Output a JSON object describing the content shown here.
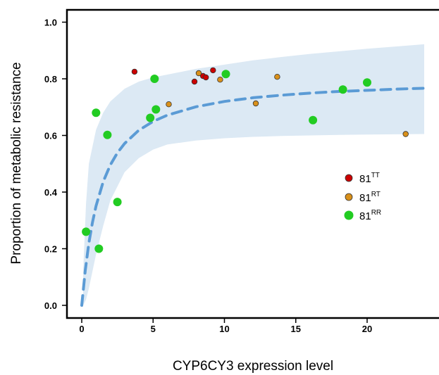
{
  "chart_data": {
    "type": "scatter",
    "xlabel": "CYP6CY3 expression level",
    "ylabel": "Proportion of metabolic resistance",
    "xlim": [
      -1,
      25.5
    ],
    "ylim": [
      -0.04,
      1.04
    ],
    "x_ticks": [
      0,
      5,
      10,
      15,
      20
    ],
    "y_ticks": [
      0.0,
      0.2,
      0.4,
      0.6,
      0.8,
      1.0
    ],
    "x_tick_labels": [
      "0",
      "5",
      "10",
      "15",
      "20"
    ],
    "y_tick_labels": [
      "0.0",
      "0.2",
      "0.4",
      "0.6",
      "0.8",
      "1.0"
    ],
    "grid": false,
    "legend_position": "right-middle",
    "series": [
      {
        "name": "81",
        "sup": "TT",
        "color": "#cc0000",
        "size": "small",
        "points": [
          {
            "x": 3.7,
            "y": 0.825
          },
          {
            "x": 7.9,
            "y": 0.79
          },
          {
            "x": 8.5,
            "y": 0.81
          },
          {
            "x": 8.7,
            "y": 0.805
          },
          {
            "x": 9.2,
            "y": 0.83
          }
        ]
      },
      {
        "name": "81",
        "sup": "RT",
        "color": "#d9901a",
        "size": "small",
        "points": [
          {
            "x": 6.1,
            "y": 0.71
          },
          {
            "x": 8.2,
            "y": 0.82
          },
          {
            "x": 9.7,
            "y": 0.797
          },
          {
            "x": 12.2,
            "y": 0.713
          },
          {
            "x": 13.7,
            "y": 0.807
          },
          {
            "x": 22.7,
            "y": 0.605
          }
        ]
      },
      {
        "name": "81",
        "sup": "RR",
        "color": "#22cc22",
        "size": "large",
        "points": [
          {
            "x": 0.3,
            "y": 0.26
          },
          {
            "x": 1.0,
            "y": 0.68
          },
          {
            "x": 1.2,
            "y": 0.2
          },
          {
            "x": 1.8,
            "y": 0.602
          },
          {
            "x": 2.5,
            "y": 0.365
          },
          {
            "x": 4.8,
            "y": 0.662
          },
          {
            "x": 5.1,
            "y": 0.8
          },
          {
            "x": 5.2,
            "y": 0.692
          },
          {
            "x": 10.1,
            "y": 0.817
          },
          {
            "x": 16.2,
            "y": 0.654
          },
          {
            "x": 18.3,
            "y": 0.762
          },
          {
            "x": 20.0,
            "y": 0.787
          }
        ]
      }
    ],
    "fit_curve": {
      "color": "#5b9bd5",
      "style": "dashed",
      "x": [
        0,
        0.25,
        0.5,
        0.75,
        1.0,
        1.5,
        2.0,
        2.5,
        3.0,
        4.0,
        5.0,
        6.0,
        8.0,
        10.0,
        12.0,
        14.0,
        16.0,
        18.0,
        20.0,
        22.0,
        24.0
      ],
      "y": [
        0.0,
        0.153,
        0.268,
        0.357,
        0.428,
        0.532,
        0.604,
        0.657,
        0.697,
        0.754,
        0.792,
        0.819,
        0.855,
        0.878,
        0.894,
        0.905,
        0.914,
        0.921,
        0.926,
        0.931,
        0.935
      ],
      "y_scale": 0.82
    },
    "confidence_band": {
      "color": "#dce9f4",
      "x": [
        0.1,
        0.3,
        0.5,
        1.0,
        1.5,
        2.0,
        3.0,
        4.0,
        5.0,
        6.0,
        8.0,
        10.0,
        12.0,
        14.0,
        16.0,
        18.0,
        20.0,
        22.0,
        24.0
      ],
      "upper": [
        0.12,
        0.36,
        0.5,
        0.62,
        0.68,
        0.72,
        0.765,
        0.79,
        0.805,
        0.815,
        0.835,
        0.85,
        0.865,
        0.877,
        0.888,
        0.897,
        0.906,
        0.914,
        0.922
      ],
      "lower": [
        0.0,
        0.02,
        0.06,
        0.18,
        0.28,
        0.37,
        0.47,
        0.52,
        0.55,
        0.568,
        0.582,
        0.59,
        0.595,
        0.598,
        0.6,
        0.602,
        0.603,
        0.604,
        0.605
      ]
    }
  }
}
